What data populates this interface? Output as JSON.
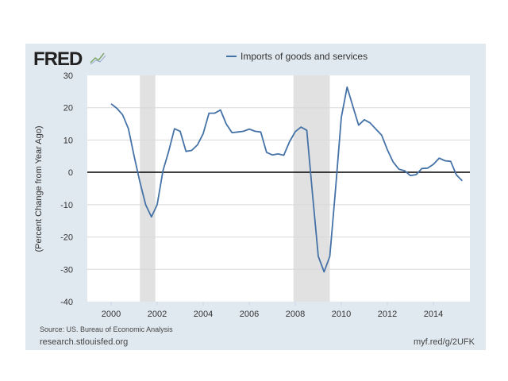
{
  "logo": {
    "text": "FRED"
  },
  "footer": {
    "source": "Source: US. Bureau of Economic Analysis",
    "site": "research.stlouisfed.org",
    "short_link": "myf.red/g/2UFK"
  },
  "colors": {
    "series": "#4572a7",
    "recession": "#e1e1e1",
    "frame": "#e1e9f0"
  },
  "chart_data": {
    "type": "line",
    "title": "",
    "xlabel": "",
    "ylabel": "(Percent Change from Year Ago)",
    "ylim": [
      -40,
      30
    ],
    "xlim": [
      1999.5,
      2015.4
    ],
    "yticks": [
      30,
      20,
      10,
      0,
      -10,
      -20,
      -30,
      -40
    ],
    "xticks": [
      2000,
      2002,
      2004,
      2006,
      2008,
      2010,
      2012,
      2014
    ],
    "grid": true,
    "legend_position": "top",
    "recessions": [
      [
        2001.25,
        2001.92
      ],
      [
        2007.92,
        2009.5
      ]
    ],
    "series": [
      {
        "name": "Imports of goods and services",
        "start": 2000.0,
        "step": 0.25,
        "values": [
          21.2,
          19.8,
          17.8,
          13.5,
          5,
          -3,
          -10,
          -13.8,
          -10,
          0.5,
          6.5,
          13.5,
          12.7,
          6.5,
          6.8,
          8.5,
          12,
          18.3,
          18.3,
          19.3,
          15,
          12.3,
          12.5,
          12.7,
          13.4,
          12.7,
          12.5,
          6.2,
          5.4,
          5.7,
          5.3,
          9.5,
          12.6,
          14,
          13,
          -7,
          -26,
          -30.8,
          -26,
          -5,
          17,
          26.4,
          20.5,
          14.6,
          16.3,
          15.3,
          13.4,
          11.5,
          7,
          3.2,
          1,
          0.5,
          -1,
          -0.7,
          1.2,
          1.3,
          2.5,
          4.4,
          3.6,
          3.4,
          -0.8,
          -2.6
        ]
      }
    ]
  }
}
